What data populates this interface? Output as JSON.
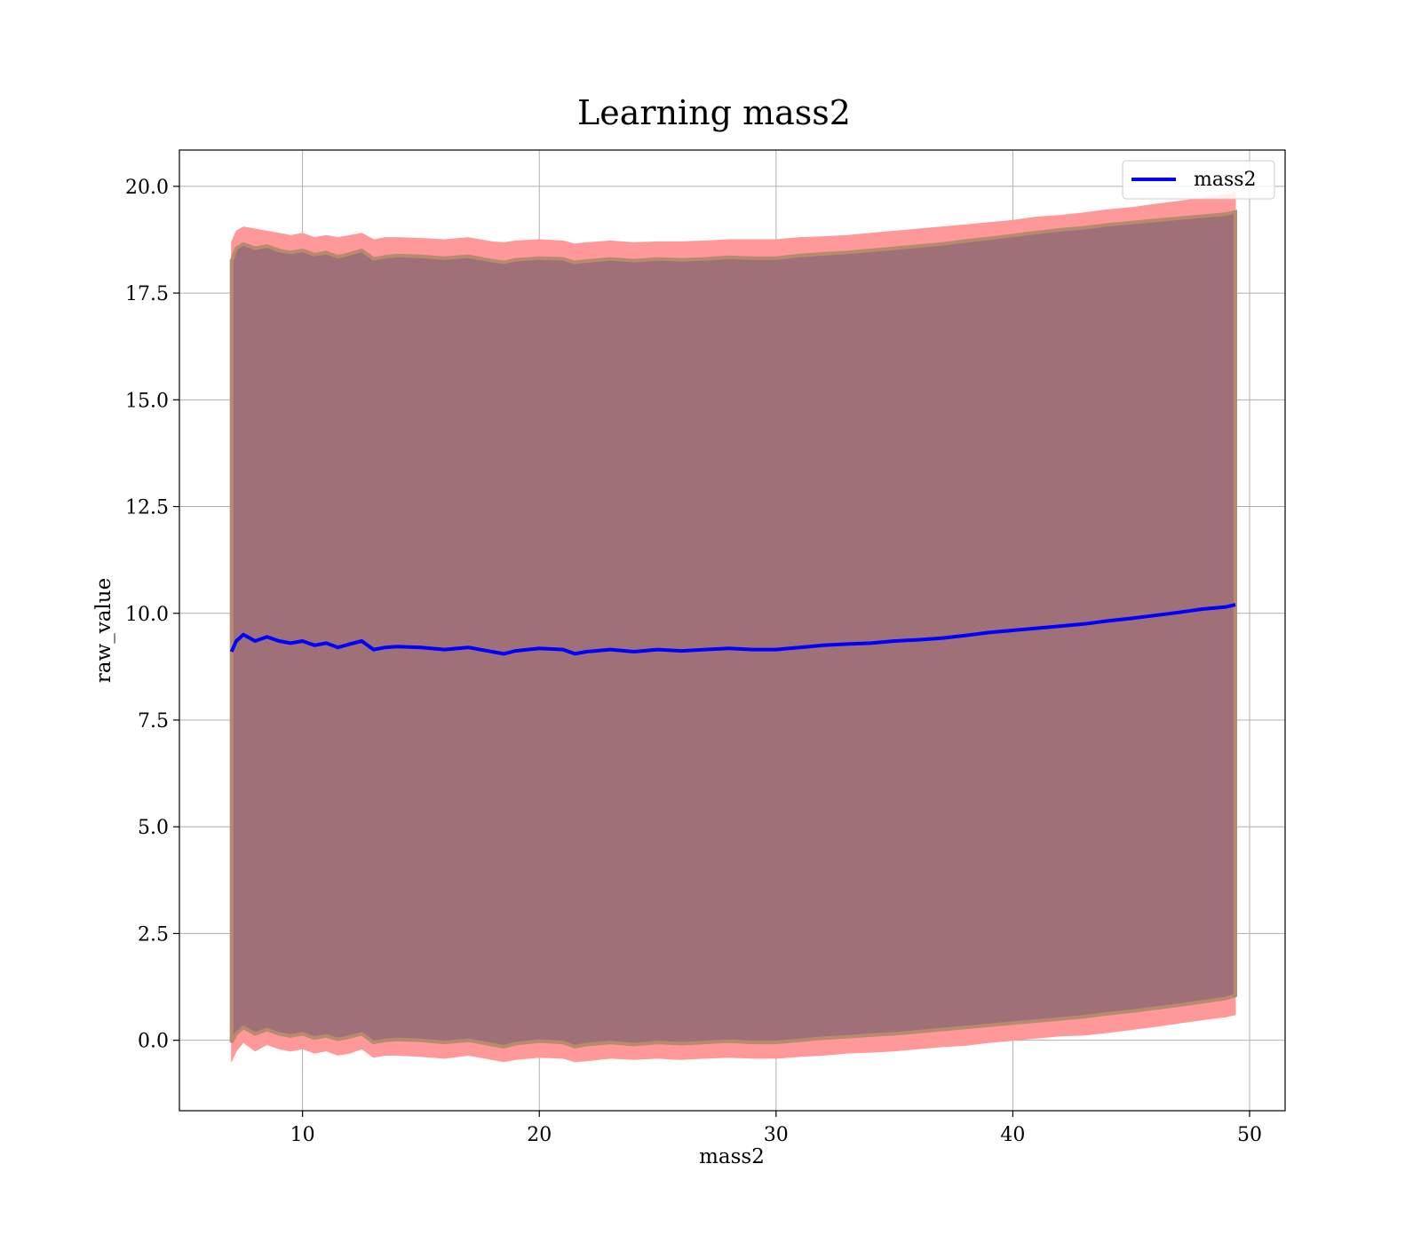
{
  "chart_data": {
    "type": "line",
    "title": "Learning mass2",
    "xlabel": "mass2",
    "ylabel": "raw_value",
    "xlim": [
      4.8,
      51.5
    ],
    "ylim": [
      -1.65,
      20.85
    ],
    "xticks": [
      10,
      20,
      30,
      40,
      50
    ],
    "xtick_labels": [
      "10",
      "20",
      "30",
      "40",
      "50"
    ],
    "yticks": [
      0,
      2.5,
      5,
      7.5,
      10,
      12.5,
      15,
      17.5,
      20
    ],
    "ytick_labels": [
      "0.0",
      "2.5",
      "5.0",
      "7.5",
      "10.0",
      "12.5",
      "15.0",
      "17.5",
      "20.0"
    ],
    "grid": true,
    "legend": {
      "position": "upper right",
      "entries": [
        "mass2"
      ]
    },
    "colors": {
      "line": "#0000ff",
      "outer_band": "#ff9999",
      "inner_band": "#a07078",
      "edge_band": "#b88a6e"
    },
    "series": [
      {
        "name": "mass2",
        "x": [
          7.0,
          7.2,
          7.5,
          8.0,
          8.5,
          9.0,
          9.5,
          10.0,
          10.5,
          11.0,
          11.5,
          12.0,
          12.5,
          13.0,
          13.5,
          14.0,
          15.0,
          16.0,
          17.0,
          18.0,
          18.5,
          19.0,
          20.0,
          21.0,
          21.5,
          22.0,
          23.0,
          24.0,
          25.0,
          26.0,
          27.0,
          28.0,
          29.0,
          30.0,
          31.0,
          32.0,
          33.0,
          34.0,
          35.0,
          36.0,
          37.0,
          38.0,
          39.0,
          40.0,
          41.0,
          42.0,
          43.0,
          44.0,
          45.0,
          46.0,
          47.0,
          48.0,
          49.0,
          49.4
        ],
        "y": [
          9.1,
          9.35,
          9.5,
          9.35,
          9.45,
          9.35,
          9.3,
          9.35,
          9.25,
          9.3,
          9.2,
          9.28,
          9.35,
          9.15,
          9.2,
          9.22,
          9.2,
          9.15,
          9.2,
          9.1,
          9.05,
          9.12,
          9.18,
          9.15,
          9.05,
          9.1,
          9.15,
          9.1,
          9.15,
          9.12,
          9.15,
          9.18,
          9.15,
          9.15,
          9.2,
          9.25,
          9.28,
          9.3,
          9.35,
          9.38,
          9.42,
          9.48,
          9.55,
          9.6,
          9.65,
          9.7,
          9.75,
          9.82,
          9.88,
          9.95,
          10.02,
          10.1,
          10.15,
          10.2
        ],
        "outer_upper": [
          18.7,
          18.95,
          19.05,
          19.0,
          18.95,
          18.9,
          18.85,
          18.9,
          18.8,
          18.85,
          18.8,
          18.85,
          18.9,
          18.75,
          18.8,
          18.8,
          18.78,
          18.75,
          18.8,
          18.7,
          18.68,
          18.72,
          18.75,
          18.72,
          18.65,
          18.68,
          18.72,
          18.68,
          18.7,
          18.7,
          18.72,
          18.75,
          18.75,
          18.75,
          18.8,
          18.82,
          18.85,
          18.9,
          18.95,
          19.0,
          19.05,
          19.1,
          19.15,
          19.2,
          19.28,
          19.32,
          19.38,
          19.45,
          19.5,
          19.58,
          19.65,
          19.72,
          19.8,
          19.85
        ],
        "outer_lower": [
          -0.5,
          -0.25,
          -0.05,
          -0.25,
          -0.1,
          -0.2,
          -0.25,
          -0.2,
          -0.3,
          -0.25,
          -0.35,
          -0.3,
          -0.2,
          -0.4,
          -0.35,
          -0.35,
          -0.38,
          -0.42,
          -0.35,
          -0.45,
          -0.5,
          -0.45,
          -0.4,
          -0.42,
          -0.5,
          -0.48,
          -0.42,
          -0.45,
          -0.42,
          -0.45,
          -0.42,
          -0.4,
          -0.42,
          -0.42,
          -0.38,
          -0.35,
          -0.3,
          -0.28,
          -0.25,
          -0.2,
          -0.15,
          -0.12,
          -0.05,
          0.0,
          0.05,
          0.1,
          0.12,
          0.18,
          0.25,
          0.32,
          0.4,
          0.48,
          0.55,
          0.6
        ],
        "inner_upper": [
          18.25,
          18.55,
          18.65,
          18.55,
          18.6,
          18.5,
          18.45,
          18.5,
          18.4,
          18.45,
          18.35,
          18.42,
          18.5,
          18.3,
          18.35,
          18.38,
          18.36,
          18.32,
          18.36,
          18.26,
          18.22,
          18.28,
          18.32,
          18.3,
          18.22,
          18.25,
          18.3,
          18.26,
          18.3,
          18.28,
          18.3,
          18.34,
          18.32,
          18.32,
          18.38,
          18.42,
          18.45,
          18.5,
          18.55,
          18.6,
          18.65,
          18.72,
          18.78,
          18.85,
          18.92,
          18.98,
          19.03,
          19.1,
          19.15,
          19.2,
          19.25,
          19.3,
          19.35,
          19.4
        ],
        "inner_lower": [
          -0.05,
          0.15,
          0.3,
          0.15,
          0.25,
          0.15,
          0.1,
          0.15,
          0.05,
          0.1,
          0.02,
          0.08,
          0.15,
          -0.05,
          0.0,
          0.02,
          0.0,
          -0.05,
          0.0,
          -0.1,
          -0.15,
          -0.08,
          -0.02,
          -0.05,
          -0.15,
          -0.1,
          -0.05,
          -0.1,
          -0.05,
          -0.08,
          -0.05,
          -0.02,
          -0.05,
          -0.05,
          0.0,
          0.05,
          0.08,
          0.12,
          0.15,
          0.2,
          0.25,
          0.3,
          0.35,
          0.4,
          0.45,
          0.5,
          0.55,
          0.62,
          0.68,
          0.75,
          0.82,
          0.9,
          0.98,
          1.05
        ]
      }
    ]
  }
}
